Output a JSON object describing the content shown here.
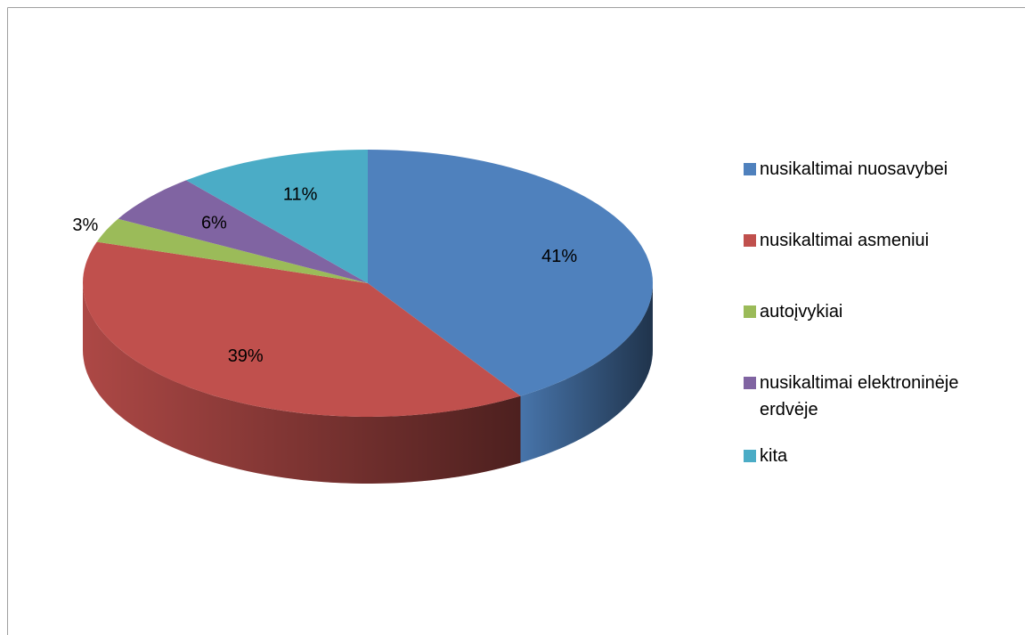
{
  "chart_data": {
    "type": "pie",
    "categories": [
      "nusikaltimai nuosavybei",
      "nusikaltimai asmeniui",
      "autoįvykiai",
      "nusikaltimai elektroninėje erdvėje",
      "kita"
    ],
    "values": [
      41,
      39,
      3,
      6,
      11
    ],
    "value_labels": [
      "41%",
      "39%",
      "3%",
      "6%",
      "11%"
    ],
    "colors": [
      "#4f81bd",
      "#c0504d",
      "#9bbb59",
      "#8064a2",
      "#4bacc6"
    ],
    "legend": "right"
  }
}
